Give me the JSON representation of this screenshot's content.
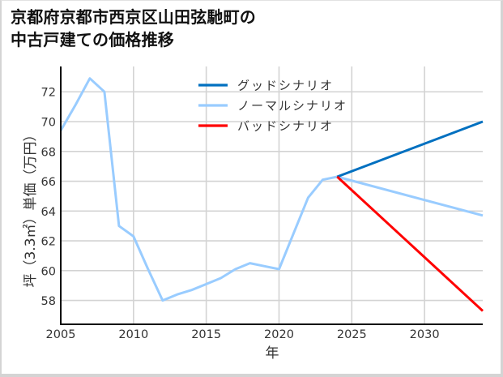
{
  "page": {
    "title_line1": "京都府京都市西京区山田弦馳町の",
    "title_line2": "中古戸建ての価格推移"
  },
  "chart_data": {
    "type": "line",
    "title": "京都府京都市西京区山田弦馳町の中古戸建ての価格推移",
    "xlabel": "年",
    "ylabel": "坪（3.3㎡）単価（万円）",
    "xlim": [
      2005,
      2034
    ],
    "ylim": [
      56.4,
      73.7
    ],
    "xticks": [
      2005,
      2010,
      2015,
      2020,
      2025,
      2030
    ],
    "yticks": [
      58,
      60,
      62,
      64,
      66,
      68,
      70,
      72
    ],
    "grid": true,
    "legend_position": "upper center",
    "series": [
      {
        "name": "グッドシナリオ",
        "color": "#0070c0",
        "x": [
          2024,
          2034
        ],
        "values": [
          66.3,
          70.0
        ]
      },
      {
        "name": "ノーマルシナリオ",
        "color": "#99ccff",
        "x": [
          2005,
          2006,
          2007,
          2008,
          2009,
          2010,
          2011,
          2012,
          2013,
          2014,
          2015,
          2016,
          2017,
          2018,
          2019,
          2020,
          2021,
          2022,
          2023,
          2024,
          2034
        ],
        "values": [
          69.4,
          71.1,
          72.9,
          72.0,
          63.0,
          62.3,
          60.1,
          58.0,
          58.4,
          58.7,
          59.1,
          59.5,
          60.1,
          60.5,
          60.3,
          60.1,
          62.5,
          64.9,
          66.1,
          66.3,
          63.7
        ]
      },
      {
        "name": "バッドシナリオ",
        "color": "#ff0000",
        "x": [
          2024,
          2034
        ],
        "values": [
          66.3,
          57.3
        ]
      }
    ]
  }
}
